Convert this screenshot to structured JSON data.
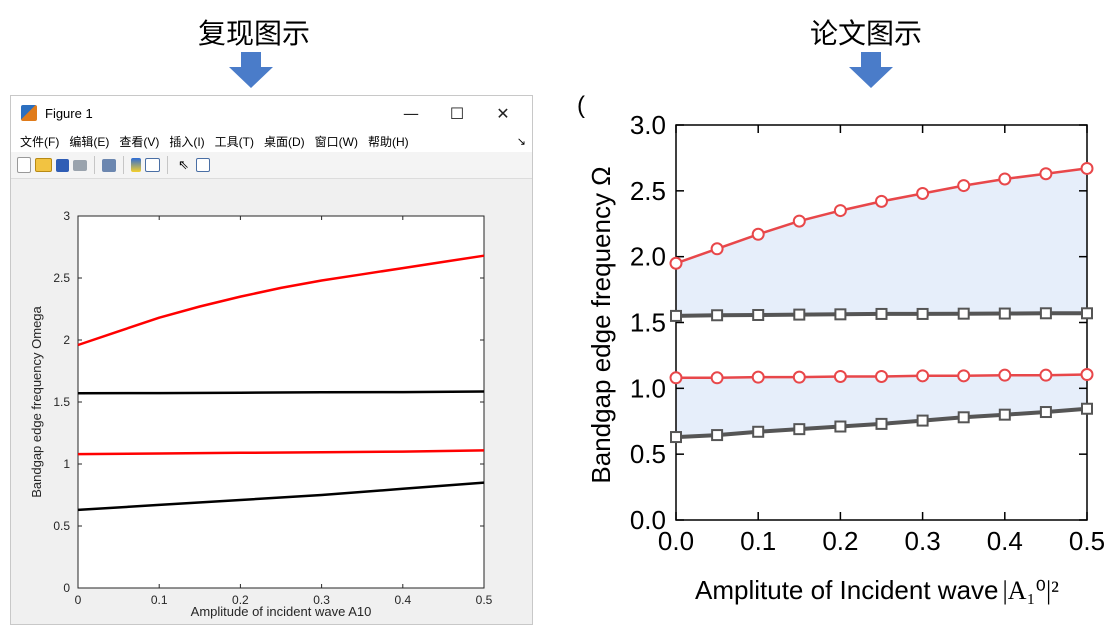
{
  "captions": {
    "left": "复现图示",
    "right": "论文图示"
  },
  "window": {
    "title": "Figure 1",
    "controls": {
      "minimize": "—",
      "maximize": "☐",
      "close": "✕"
    },
    "menu": [
      "文件(F)",
      "编辑(E)",
      "查看(V)",
      "插入(I)",
      "工具(T)",
      "桌面(D)",
      "窗口(W)",
      "帮助(H)"
    ],
    "menu_more": "↘",
    "toolbar_icons": [
      "new-figure-icon",
      "open-file-icon",
      "save-icon",
      "print-icon",
      "link-plot-icon",
      "colorbar-icon",
      "legend-icon",
      "pointer-icon",
      "property-inspector-icon"
    ]
  },
  "colors": {
    "red": "#ff0000",
    "black": "#000000",
    "paper_red": "#e8474a",
    "paper_gray": "#555555",
    "fill": "#e6eefa",
    "arrow": "#4a7cc9"
  },
  "chart_data": [
    {
      "type": "line",
      "xlabel": "Amplitude of incident wave A10",
      "ylabel": "Bandgap edge frequency Omega",
      "xlim": [
        0,
        0.5
      ],
      "ylim": [
        0,
        3
      ],
      "xticks": [
        "0",
        "0.1",
        "0.2",
        "0.3",
        "0.4",
        "0.5"
      ],
      "yticks": [
        "0",
        "0.5",
        "1",
        "1.5",
        "2",
        "2.5",
        "3"
      ],
      "grid": false,
      "series": [
        {
          "color": "#ff0000",
          "x": [
            0,
            0.05,
            0.1,
            0.15,
            0.2,
            0.25,
            0.3,
            0.35,
            0.4,
            0.45,
            0.5
          ],
          "y": [
            1.96,
            2.07,
            2.18,
            2.27,
            2.35,
            2.42,
            2.48,
            2.53,
            2.58,
            2.63,
            2.68
          ]
        },
        {
          "color": "#000000",
          "x": [
            0,
            0.1,
            0.2,
            0.3,
            0.4,
            0.5
          ],
          "y": [
            1.57,
            1.572,
            1.575,
            1.578,
            1.58,
            1.585
          ]
        },
        {
          "color": "#ff0000",
          "x": [
            0,
            0.1,
            0.2,
            0.3,
            0.4,
            0.5
          ],
          "y": [
            1.08,
            1.085,
            1.09,
            1.095,
            1.1,
            1.11
          ]
        },
        {
          "color": "#000000",
          "x": [
            0,
            0.1,
            0.2,
            0.3,
            0.4,
            0.5
          ],
          "y": [
            0.63,
            0.67,
            0.71,
            0.75,
            0.8,
            0.85
          ]
        }
      ]
    },
    {
      "type": "line",
      "xlabel": "Amplitute of Incident wave",
      "xlabel_math": "|A₁⁰|²",
      "ylabel": "Bandgap edge frequency Ω",
      "panel_label": "(",
      "xlim": [
        0,
        0.5
      ],
      "ylim": [
        0,
        3
      ],
      "xticks": [
        "0.0",
        "0.1",
        "0.2",
        "0.3",
        "0.4",
        "0.5"
      ],
      "yticks": [
        "0.0",
        "0.5",
        "1.0",
        "1.5",
        "2.0",
        "2.5",
        "3.0"
      ],
      "grid": false,
      "shaded_bands": [
        [
          1.57,
          "upper"
        ],
        [
          0.63,
          1.085
        ]
      ],
      "series": [
        {
          "marker": "circle",
          "color": "#e8474a",
          "x": [
            0,
            0.05,
            0.1,
            0.15,
            0.2,
            0.25,
            0.3,
            0.35,
            0.4,
            0.45,
            0.5
          ],
          "y": [
            1.95,
            2.06,
            2.17,
            2.27,
            2.35,
            2.42,
            2.48,
            2.54,
            2.59,
            2.63,
            2.67
          ]
        },
        {
          "marker": "square",
          "color": "#555555",
          "x": [
            0,
            0.05,
            0.1,
            0.15,
            0.2,
            0.25,
            0.3,
            0.35,
            0.4,
            0.45,
            0.5
          ],
          "y": [
            1.55,
            1.555,
            1.557,
            1.56,
            1.562,
            1.565,
            1.565,
            1.567,
            1.568,
            1.57,
            1.57
          ]
        },
        {
          "marker": "circle",
          "color": "#e8474a",
          "x": [
            0,
            0.05,
            0.1,
            0.15,
            0.2,
            0.25,
            0.3,
            0.35,
            0.4,
            0.45,
            0.5
          ],
          "y": [
            1.08,
            1.08,
            1.085,
            1.085,
            1.09,
            1.09,
            1.095,
            1.095,
            1.1,
            1.1,
            1.105
          ]
        },
        {
          "marker": "square",
          "color": "#555555",
          "x": [
            0,
            0.05,
            0.1,
            0.15,
            0.2,
            0.25,
            0.3,
            0.35,
            0.4,
            0.45,
            0.5
          ],
          "y": [
            0.63,
            0.645,
            0.67,
            0.69,
            0.71,
            0.73,
            0.755,
            0.78,
            0.8,
            0.82,
            0.845
          ]
        }
      ]
    }
  ]
}
